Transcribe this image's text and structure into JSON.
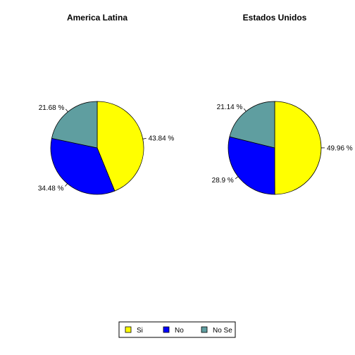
{
  "chart_data": [
    {
      "type": "pie",
      "title": "America Latina",
      "slices": [
        {
          "name": "Si",
          "value": 43.84,
          "label": "43.84 %"
        },
        {
          "name": "No",
          "value": 34.48,
          "label": "34.48 %"
        },
        {
          "name": "No Se",
          "value": 21.68,
          "label": "21.68 %"
        }
      ]
    },
    {
      "type": "pie",
      "title": "Estados Unidos",
      "slices": [
        {
          "name": "Si",
          "value": 49.96,
          "label": "49.96 %"
        },
        {
          "name": "No",
          "value": 28.9,
          "label": "28.9 %"
        },
        {
          "name": "No Se",
          "value": 21.14,
          "label": "21.14 %"
        }
      ]
    }
  ],
  "legend": {
    "placement": "bottom",
    "items": [
      {
        "name": "Si",
        "color": "#ffff00"
      },
      {
        "name": "No",
        "color": "#0000ff"
      },
      {
        "name": "No Se",
        "color": "#5f9ea0"
      }
    ]
  }
}
